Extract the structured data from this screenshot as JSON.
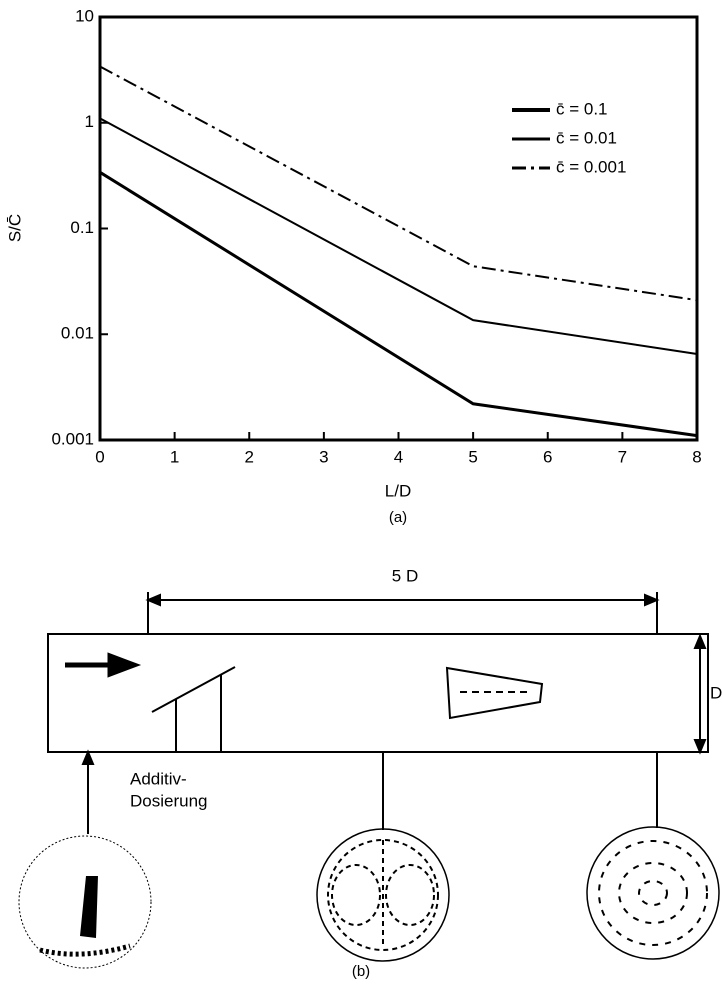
{
  "chart_data": {
    "type": "line",
    "x_label": "L/D",
    "y_label": "S/C̄",
    "caption": "(a)",
    "x": [
      0,
      5,
      8
    ],
    "series": [
      {
        "name": "c̄ = 0.1",
        "color": "#000000",
        "dash": "solid",
        "width": 3,
        "values": [
          0.34,
          0.0022,
          0.0011
        ]
      },
      {
        "name": "c̄ = 0.01",
        "color": "#000000",
        "dash": "solid",
        "width": 2,
        "values": [
          1.1,
          0.0136,
          0.0065
        ]
      },
      {
        "name": "c̄ = 0.001",
        "color": "#000000",
        "dash": "dashdot",
        "width": 2,
        "values": [
          3.4,
          0.044,
          0.021
        ]
      }
    ],
    "xlim": [
      0,
      8
    ],
    "xticks": [
      0,
      1,
      2,
      3,
      4,
      5,
      6,
      7,
      8
    ],
    "ylim": [
      0.001,
      10
    ],
    "yticks": [
      0.001,
      0.01,
      0.1,
      1,
      10
    ],
    "log_y": true,
    "grid": false,
    "legend": "upper right"
  },
  "diagram": {
    "length_label": "5 D",
    "diameter_label": "D",
    "inlet_label_1": "Additiv-",
    "inlet_label_2": "Dosierung",
    "caption": "(b)"
  }
}
